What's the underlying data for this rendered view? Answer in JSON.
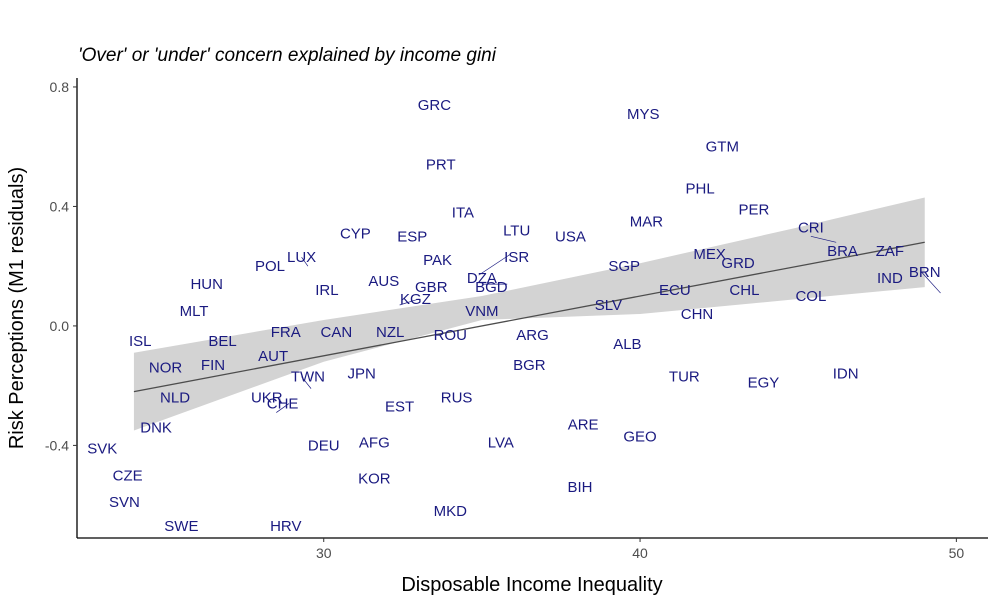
{
  "chart_data": {
    "type": "scatter",
    "title": "'Over' or 'under' concern explained by income gini",
    "xlabel": "Disposable Income Inequality",
    "ylabel": "Risk Perceptions (M1 residuals)",
    "xlim": [
      22.2,
      51.0
    ],
    "ylim": [
      -0.71,
      0.83
    ],
    "x_ticks": [
      30,
      40,
      50
    ],
    "y_ticks": [
      -0.4,
      0.0,
      0.4,
      0.8
    ],
    "x_tick_labels": [
      "30",
      "40",
      "50"
    ],
    "y_tick_labels": [
      "-0.4",
      "0.0",
      "0.4",
      "0.8"
    ],
    "grid": false,
    "legend": "none",
    "label_color": "#1a1a80",
    "fit": {
      "x_range": [
        24.0,
        49.0
      ],
      "line": [
        [
          24.0,
          -0.22
        ],
        [
          49.0,
          0.28
        ]
      ],
      "ci_upper": [
        [
          24.0,
          -0.09
        ],
        [
          30.0,
          0.02
        ],
        [
          35.0,
          0.1
        ],
        [
          40.0,
          0.21
        ],
        [
          45.0,
          0.33
        ],
        [
          49.0,
          0.43
        ]
      ],
      "ci_lower": [
        [
          24.0,
          -0.35
        ],
        [
          30.0,
          -0.12
        ],
        [
          35.0,
          0.02
        ],
        [
          40.0,
          0.04
        ],
        [
          45.0,
          0.09
        ],
        [
          49.0,
          0.13
        ]
      ]
    },
    "points": [
      {
        "label": "GRC",
        "x": 33.5,
        "y": 0.74
      },
      {
        "label": "MYS",
        "x": 40.1,
        "y": 0.71
      },
      {
        "label": "GTM",
        "x": 42.6,
        "y": 0.6
      },
      {
        "label": "PRT",
        "x": 33.7,
        "y": 0.54
      },
      {
        "label": "PHL",
        "x": 41.9,
        "y": 0.46
      },
      {
        "label": "PER",
        "x": 43.6,
        "y": 0.39
      },
      {
        "label": "ITA",
        "x": 34.4,
        "y": 0.38
      },
      {
        "label": "MAR",
        "x": 40.2,
        "y": 0.35
      },
      {
        "label": "CRI",
        "x": 45.4,
        "y": 0.33
      },
      {
        "label": "LTU",
        "x": 36.1,
        "y": 0.32
      },
      {
        "label": "CYP",
        "x": 31.0,
        "y": 0.31
      },
      {
        "label": "ESP",
        "x": 32.8,
        "y": 0.3
      },
      {
        "label": "USA",
        "x": 37.8,
        "y": 0.3
      },
      {
        "label": "LUX",
        "x": 29.3,
        "y": 0.23
      },
      {
        "label": "BRA",
        "x": 46.4,
        "y": 0.25
      },
      {
        "label": "ZAF",
        "x": 47.9,
        "y": 0.25
      },
      {
        "label": "MEX",
        "x": 42.2,
        "y": 0.24
      },
      {
        "label": "ISR",
        "x": 36.1,
        "y": 0.23
      },
      {
        "label": "PAK",
        "x": 33.6,
        "y": 0.22
      },
      {
        "label": "DZA",
        "x": 35.0,
        "y": 0.16
      },
      {
        "label": "GRD",
        "x": 43.1,
        "y": 0.21
      },
      {
        "label": "POL",
        "x": 28.3,
        "y": 0.2
      },
      {
        "label": "SGP",
        "x": 39.5,
        "y": 0.2
      },
      {
        "label": "IND",
        "x": 47.9,
        "y": 0.16
      },
      {
        "label": "AUS",
        "x": 31.9,
        "y": 0.15
      },
      {
        "label": "HUN",
        "x": 26.3,
        "y": 0.14
      },
      {
        "label": "BGD",
        "x": 35.3,
        "y": 0.13
      },
      {
        "label": "IRL",
        "x": 30.1,
        "y": 0.12
      },
      {
        "label": "GBR",
        "x": 33.4,
        "y": 0.13
      },
      {
        "label": "ECU",
        "x": 41.1,
        "y": 0.12
      },
      {
        "label": "CHL",
        "x": 43.3,
        "y": 0.12
      },
      {
        "label": "COL",
        "x": 45.4,
        "y": 0.1
      },
      {
        "label": "BRN",
        "x": 49.0,
        "y": 0.18
      },
      {
        "label": "KGZ",
        "x": 32.9,
        "y": 0.09
      },
      {
        "label": "SLV",
        "x": 39.0,
        "y": 0.07
      },
      {
        "label": "VNM",
        "x": 35.0,
        "y": 0.05
      },
      {
        "label": "MLT",
        "x": 25.9,
        "y": 0.05
      },
      {
        "label": "CHN",
        "x": 41.8,
        "y": 0.04
      },
      {
        "label": "FRA",
        "x": 28.8,
        "y": -0.02
      },
      {
        "label": "CAN",
        "x": 30.4,
        "y": -0.02
      },
      {
        "label": "NZL",
        "x": 32.1,
        "y": -0.02
      },
      {
        "label": "ARG",
        "x": 36.6,
        "y": -0.03
      },
      {
        "label": "ROU",
        "x": 34.0,
        "y": -0.03
      },
      {
        "label": "BEL",
        "x": 26.8,
        "y": -0.05
      },
      {
        "label": "ISL",
        "x": 24.2,
        "y": -0.05
      },
      {
        "label": "ALB",
        "x": 39.6,
        "y": -0.06
      },
      {
        "label": "AUT",
        "x": 28.4,
        "y": -0.1
      },
      {
        "label": "BGR",
        "x": 36.5,
        "y": -0.13
      },
      {
        "label": "FIN",
        "x": 26.5,
        "y": -0.13
      },
      {
        "label": "NOR",
        "x": 25.0,
        "y": -0.14
      },
      {
        "label": "JPN",
        "x": 31.2,
        "y": -0.16
      },
      {
        "label": "TUR",
        "x": 41.4,
        "y": -0.17
      },
      {
        "label": "IDN",
        "x": 46.5,
        "y": -0.16
      },
      {
        "label": "EGY",
        "x": 43.9,
        "y": -0.19
      },
      {
        "label": "TWN",
        "x": 29.5,
        "y": -0.17
      },
      {
        "label": "NLD",
        "x": 25.3,
        "y": -0.24
      },
      {
        "label": "UKR",
        "x": 28.2,
        "y": -0.24
      },
      {
        "label": "RUS",
        "x": 34.2,
        "y": -0.24
      },
      {
        "label": "EST",
        "x": 32.4,
        "y": -0.27
      },
      {
        "label": "CHE",
        "x": 28.7,
        "y": -0.26
      },
      {
        "label": "DNK",
        "x": 24.7,
        "y": -0.34
      },
      {
        "label": "ARE",
        "x": 38.2,
        "y": -0.33
      },
      {
        "label": "GEO",
        "x": 40.0,
        "y": -0.37
      },
      {
        "label": "AFG",
        "x": 31.6,
        "y": -0.39
      },
      {
        "label": "LVA",
        "x": 35.6,
        "y": -0.39
      },
      {
        "label": "DEU",
        "x": 30.0,
        "y": -0.4
      },
      {
        "label": "SVK",
        "x": 23.0,
        "y": -0.41
      },
      {
        "label": "CZE",
        "x": 23.8,
        "y": -0.5
      },
      {
        "label": "KOR",
        "x": 31.6,
        "y": -0.51
      },
      {
        "label": "BIH",
        "x": 38.1,
        "y": -0.54
      },
      {
        "label": "SVN",
        "x": 23.7,
        "y": -0.59
      },
      {
        "label": "MKD",
        "x": 34.0,
        "y": -0.62
      },
      {
        "label": "SWE",
        "x": 25.5,
        "y": -0.67
      },
      {
        "label": "HRV",
        "x": 28.8,
        "y": -0.67
      }
    ],
    "leaders": [
      {
        "from": [
          29.3,
          0.23
        ],
        "to": [
          29.5,
          0.2
        ]
      },
      {
        "from": [
          35.9,
          0.24
        ],
        "to": [
          34.9,
          0.17
        ]
      },
      {
        "from": [
          35.0,
          0.14
        ],
        "to": [
          35.8,
          0.14
        ]
      },
      {
        "from": [
          33.0,
          0.09
        ],
        "to": [
          32.4,
          0.07
        ]
      },
      {
        "from": [
          29.3,
          -0.17
        ],
        "to": [
          29.6,
          -0.21
        ]
      },
      {
        "from": [
          28.5,
          -0.29
        ],
        "to": [
          28.9,
          -0.26
        ]
      },
      {
        "from": [
          45.4,
          0.3
        ],
        "to": [
          46.2,
          0.28
        ]
      },
      {
        "from": [
          48.9,
          0.18
        ],
        "to": [
          49.5,
          0.11
        ]
      }
    ]
  }
}
